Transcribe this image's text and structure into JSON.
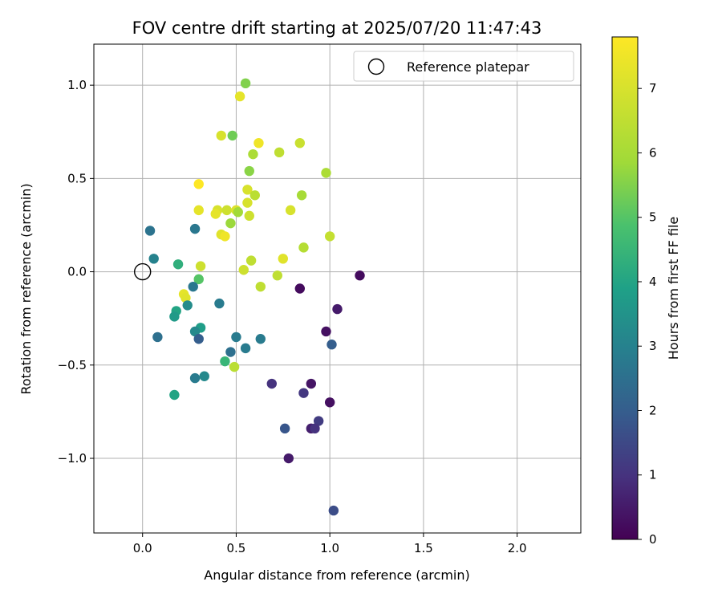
{
  "chart_data": {
    "type": "scatter",
    "title": "FOV centre drift starting at 2025/07/20 11:47:43",
    "xlabel": "Angular distance from reference (arcmin)",
    "ylabel": "Rotation from reference (arcmin)",
    "xlim": [
      -0.26,
      2.34
    ],
    "ylim": [
      -1.4,
      1.22
    ],
    "xticks": [
      0.0,
      0.5,
      1.0,
      1.5,
      2.0
    ],
    "xtick_labels": [
      "0.0",
      "0.5",
      "1.0",
      "1.5",
      "2.0"
    ],
    "yticks": [
      -1.0,
      -0.5,
      0.0,
      0.5,
      1.0
    ],
    "ytick_labels": [
      "−1.0",
      "−0.5",
      "0.0",
      "0.5",
      "1.0"
    ],
    "grid": true,
    "legend": {
      "placement": "top-right",
      "entries": [
        "Reference platepar"
      ]
    },
    "reference_point": {
      "x": 0.0,
      "y": 0.0
    },
    "colorbar": {
      "label": "Hours from first FF file",
      "range": [
        0,
        7.8
      ],
      "ticks": [
        0,
        1,
        2,
        3,
        4,
        5,
        6,
        7
      ],
      "colormap": "viridis"
    },
    "points": [
      {
        "x": 0.55,
        "y": 1.01,
        "h": 5.5
      },
      {
        "x": 0.52,
        "y": 0.94,
        "h": 7.3
      },
      {
        "x": 0.42,
        "y": 0.73,
        "h": 7.0
      },
      {
        "x": 0.48,
        "y": 0.73,
        "h": 5.3
      },
      {
        "x": 0.62,
        "y": 0.69,
        "h": 7.5
      },
      {
        "x": 0.84,
        "y": 0.69,
        "h": 6.7
      },
      {
        "x": 0.59,
        "y": 0.63,
        "h": 6.1
      },
      {
        "x": 0.73,
        "y": 0.64,
        "h": 6.5
      },
      {
        "x": 0.57,
        "y": 0.54,
        "h": 5.6
      },
      {
        "x": 0.98,
        "y": 0.53,
        "h": 6.1
      },
      {
        "x": 0.3,
        "y": 0.47,
        "h": 7.8
      },
      {
        "x": 0.56,
        "y": 0.44,
        "h": 7.0
      },
      {
        "x": 0.6,
        "y": 0.41,
        "h": 6.4
      },
      {
        "x": 0.85,
        "y": 0.41,
        "h": 6.0
      },
      {
        "x": 0.56,
        "y": 0.37,
        "h": 7.0
      },
      {
        "x": 0.3,
        "y": 0.33,
        "h": 7.3
      },
      {
        "x": 0.4,
        "y": 0.33,
        "h": 7.0
      },
      {
        "x": 0.45,
        "y": 0.33,
        "h": 6.8
      },
      {
        "x": 0.5,
        "y": 0.33,
        "h": 7.1
      },
      {
        "x": 0.51,
        "y": 0.32,
        "h": 5.9
      },
      {
        "x": 0.79,
        "y": 0.33,
        "h": 7.0
      },
      {
        "x": 0.39,
        "y": 0.31,
        "h": 7.3
      },
      {
        "x": 0.57,
        "y": 0.3,
        "h": 6.8
      },
      {
        "x": 0.47,
        "y": 0.26,
        "h": 5.8
      },
      {
        "x": 0.04,
        "y": 0.22,
        "h": 2.6
      },
      {
        "x": 0.28,
        "y": 0.23,
        "h": 2.7
      },
      {
        "x": 0.42,
        "y": 0.2,
        "h": 7.2
      },
      {
        "x": 0.44,
        "y": 0.19,
        "h": 7.5
      },
      {
        "x": 1.0,
        "y": 0.19,
        "h": 6.6
      },
      {
        "x": 0.86,
        "y": 0.13,
        "h": 6.3
      },
      {
        "x": 0.06,
        "y": 0.07,
        "h": 3.0
      },
      {
        "x": 0.75,
        "y": 0.07,
        "h": 7.2
      },
      {
        "x": 0.58,
        "y": 0.06,
        "h": 6.5
      },
      {
        "x": 0.19,
        "y": 0.04,
        "h": 4.3
      },
      {
        "x": 0.31,
        "y": 0.03,
        "h": 6.8
      },
      {
        "x": 0.54,
        "y": 0.01,
        "h": 6.8
      },
      {
        "x": 0.72,
        "y": -0.02,
        "h": 6.5
      },
      {
        "x": 1.16,
        "y": -0.02,
        "h": 0.2
      },
      {
        "x": 0.3,
        "y": -0.04,
        "h": 5.0
      },
      {
        "x": 0.27,
        "y": -0.08,
        "h": 2.7
      },
      {
        "x": 0.63,
        "y": -0.08,
        "h": 6.5
      },
      {
        "x": 0.84,
        "y": -0.09,
        "h": 0.2
      },
      {
        "x": 0.22,
        "y": -0.12,
        "h": 7.3
      },
      {
        "x": 0.23,
        "y": -0.14,
        "h": 7.2
      },
      {
        "x": 0.41,
        "y": -0.17,
        "h": 2.8
      },
      {
        "x": 0.24,
        "y": -0.18,
        "h": 3.3
      },
      {
        "x": 0.18,
        "y": -0.21,
        "h": 4.0
      },
      {
        "x": 1.04,
        "y": -0.2,
        "h": 0.5
      },
      {
        "x": 0.17,
        "y": -0.24,
        "h": 3.7
      },
      {
        "x": 0.31,
        "y": -0.3,
        "h": 3.8
      },
      {
        "x": 0.28,
        "y": -0.32,
        "h": 3.2
      },
      {
        "x": 0.98,
        "y": -0.32,
        "h": 0.3
      },
      {
        "x": 0.5,
        "y": -0.35,
        "h": 2.8
      },
      {
        "x": 0.3,
        "y": -0.36,
        "h": 2.0
      },
      {
        "x": 0.08,
        "y": -0.35,
        "h": 2.5
      },
      {
        "x": 0.63,
        "y": -0.36,
        "h": 2.8
      },
      {
        "x": 1.01,
        "y": -0.39,
        "h": 2.0
      },
      {
        "x": 0.55,
        "y": -0.41,
        "h": 2.8
      },
      {
        "x": 0.47,
        "y": -0.43,
        "h": 2.5
      },
      {
        "x": 0.44,
        "y": -0.48,
        "h": 4.5
      },
      {
        "x": 0.49,
        "y": -0.51,
        "h": 6.4
      },
      {
        "x": 0.28,
        "y": -0.57,
        "h": 2.8
      },
      {
        "x": 0.33,
        "y": -0.56,
        "h": 3.2
      },
      {
        "x": 0.69,
        "y": -0.6,
        "h": 1.0
      },
      {
        "x": 0.9,
        "y": -0.6,
        "h": 0.4
      },
      {
        "x": 0.86,
        "y": -0.65,
        "h": 1.1
      },
      {
        "x": 0.17,
        "y": -0.66,
        "h": 4.0
      },
      {
        "x": 1.0,
        "y": -0.7,
        "h": 0.3
      },
      {
        "x": 0.94,
        "y": -0.8,
        "h": 1.2
      },
      {
        "x": 0.76,
        "y": -0.84,
        "h": 1.8
      },
      {
        "x": 0.9,
        "y": -0.84,
        "h": 0.6
      },
      {
        "x": 0.92,
        "y": -0.84,
        "h": 1.0
      },
      {
        "x": 0.78,
        "y": -1.0,
        "h": 0.5
      },
      {
        "x": 1.02,
        "y": -1.28,
        "h": 1.6
      }
    ]
  }
}
